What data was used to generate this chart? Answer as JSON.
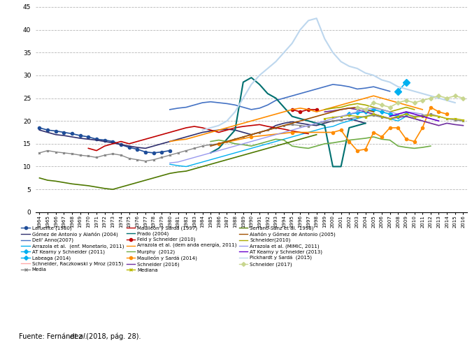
{
  "ylim": [
    0,
    45
  ],
  "yticks": [
    0,
    5,
    10,
    15,
    20,
    25,
    30,
    35,
    40,
    45
  ],
  "series": [
    {
      "label": "Lafuente (1980)",
      "color": "#1F4E99",
      "linewidth": 1.2,
      "marker": "o",
      "markersize": 3,
      "data": {
        "1964": 18.5,
        "1965": 18.0,
        "1966": 17.8,
        "1967": 17.5,
        "1968": 17.2,
        "1969": 16.8,
        "1970": 16.5,
        "1971": 16.0,
        "1972": 15.8,
        "1973": 15.5,
        "1974": 14.8,
        "1975": 14.2,
        "1976": 13.8,
        "1977": 13.2,
        "1978": 13.0,
        "1979": 13.2,
        "1980": 13.5
      }
    },
    {
      "label": "Gómez de Antonio y Alañón (2004)",
      "color": "#2F2F6E",
      "linewidth": 1.2,
      "marker": null,
      "markersize": 0,
      "data": {
        "1964": 18.0,
        "1965": 17.5,
        "1966": 17.0,
        "1967": 16.8,
        "1968": 16.5,
        "1969": 16.2,
        "1970": 16.0,
        "1971": 15.8,
        "1972": 15.5,
        "1973": 15.2,
        "1974": 14.8,
        "1975": 14.5,
        "1976": 14.2,
        "1977": 14.0,
        "1978": 14.5,
        "1979": 15.0,
        "1980": 15.5,
        "1981": 16.0,
        "1982": 16.5,
        "1983": 17.0,
        "1984": 17.5,
        "1985": 17.8,
        "1986": 18.0,
        "1987": 18.2,
        "1988": 18.0,
        "1989": 17.5,
        "1990": 17.0,
        "1991": 17.5,
        "1992": 18.0,
        "1993": 19.0,
        "1994": 19.5,
        "1995": 19.8,
        "1996": 19.5,
        "1997": 19.2,
        "1998": 19.0,
        "1999": 19.5,
        "2000": 20.0,
        "2001": 20.2,
        "2002": 20.5,
        "2003": 20.0,
        "2004": 19.5
      }
    },
    {
      "label": "Dell'Anno(2007)",
      "color": "#4472C4",
      "linewidth": 1.2,
      "marker": null,
      "markersize": 0,
      "data": {
        "1980": 22.5,
        "1981": 22.8,
        "1982": 23.0,
        "1983": 23.5,
        "1984": 24.0,
        "1985": 24.2,
        "1986": 24.0,
        "1987": 23.8,
        "1988": 23.5,
        "1989": 23.0,
        "1990": 22.5,
        "1991": 22.8,
        "1992": 23.5,
        "1993": 24.5,
        "1994": 25.0,
        "1995": 25.5,
        "1996": 26.0,
        "1997": 26.5,
        "1998": 27.0,
        "1999": 27.5,
        "2000": 28.0,
        "2001": 27.8,
        "2002": 27.5,
        "2003": 27.0,
        "2004": 27.2,
        "2005": 27.5,
        "2006": 27.0,
        "2007": 26.5
      }
    },
    {
      "label": "Arrazola et al.  (enf. Monetario, 2011)",
      "color": "#00B0F0",
      "linewidth": 1.0,
      "marker": null,
      "markersize": 0,
      "data": {
        "1980": 10.5,
        "1981": 10.2,
        "1982": 10.0,
        "1983": 10.5,
        "1984": 11.0,
        "1985": 11.5,
        "1986": 12.0,
        "1987": 12.5,
        "1988": 13.0,
        "1989": 13.5,
        "1990": 14.0,
        "1991": 14.5,
        "1992": 15.0,
        "1993": 15.5,
        "1994": 16.0,
        "1995": 16.5,
        "1996": 17.0,
        "1997": 17.5,
        "1998": 18.0,
        "1999": 18.5,
        "2000": 18.8,
        "2001": 19.5,
        "2002": 20.0,
        "2003": 20.5,
        "2004": 21.0,
        "2005": 21.5,
        "2006": 21.0,
        "2007": 20.5,
        "2008": 20.0,
        "2009": 21.0,
        "2010": 20.5,
        "2011": 20.0
      }
    },
    {
      "label": "AT Kearny y Schneider (2011)",
      "color": "#00B0F0",
      "linewidth": 1.2,
      "marker": "D",
      "markersize": 3,
      "data": {
        "2002": 21.5,
        "2003": 21.8,
        "2004": 22.0,
        "2005": 22.5,
        "2006": 22.0,
        "2007": 21.5,
        "2008": 21.0,
        "2009": 21.5
      }
    },
    {
      "label": "Labeaga (2014)",
      "color": "#00B0F0",
      "linewidth": 1.2,
      "marker": "D",
      "markersize": 5,
      "data": {
        "2008": 26.5,
        "2009": 28.5
      }
    },
    {
      "label": "Schneider, Raczkowski y Mroz (2015)",
      "color": "#FFAAAA",
      "linewidth": 1.0,
      "marker": null,
      "markersize": 0,
      "data": {
        "1999": 22.0,
        "2000": 22.2,
        "2001": 22.5,
        "2002": 22.8,
        "2003": 22.5,
        "2004": 22.0,
        "2005": 21.5,
        "2006": 21.0,
        "2007": 20.5,
        "2008": 20.8,
        "2009": 21.0,
        "2010": 20.5,
        "2011": 20.0,
        "2012": 19.5,
        "2013": 19.0
      }
    },
    {
      "label": "Media",
      "color": "#888888",
      "linewidth": 1.0,
      "marker": "x",
      "markersize": 2,
      "data": {
        "1964": 13.0,
        "1965": 13.5,
        "1966": 13.2,
        "1967": 13.0,
        "1968": 12.8,
        "1969": 12.5,
        "1970": 12.3,
        "1971": 12.0,
        "1972": 12.5,
        "1973": 12.8,
        "1974": 12.5,
        "1975": 11.8,
        "1976": 11.5,
        "1977": 11.2,
        "1978": 11.5,
        "1979": 12.0,
        "1980": 12.5,
        "1981": 13.0,
        "1982": 13.5,
        "1983": 14.0,
        "1984": 14.5,
        "1985": 14.8,
        "1986": 15.0,
        "1987": 15.5,
        "1988": 16.0,
        "1989": 16.5,
        "1990": 17.0,
        "1991": 17.5,
        "1992": 18.0,
        "1993": 18.5,
        "1994": 19.0,
        "1995": 19.2,
        "1996": 19.0,
        "1997": 18.8,
        "1998": 19.5,
        "1999": 19.8,
        "2000": 20.0,
        "2001": 20.2,
        "2002": 20.5,
        "2003": 20.8,
        "2004": 21.0,
        "2005": 21.2,
        "2006": 20.8,
        "2007": 20.5,
        "2008": 21.0,
        "2009": 21.5,
        "2010": 21.0,
        "2011": 21.2,
        "2012": 21.5,
        "2013": 21.0,
        "2014": 20.5,
        "2015": 20.2,
        "2016": 20.0
      }
    },
    {
      "label": "Maulleón y Sardá (1997)",
      "color": "#C00000",
      "linewidth": 1.2,
      "marker": null,
      "markersize": 0,
      "data": {
        "1970": 14.0,
        "1971": 13.5,
        "1972": 14.5,
        "1973": 15.0,
        "1974": 15.5,
        "1975": 15.0,
        "1976": 15.5,
        "1977": 16.0,
        "1978": 16.5,
        "1979": 17.0,
        "1980": 17.5,
        "1981": 18.0,
        "1982": 18.5,
        "1983": 18.8,
        "1984": 18.5,
        "1985": 18.0,
        "1986": 17.5,
        "1987": 18.0,
        "1988": 18.5,
        "1989": 18.8,
        "1990": 19.0,
        "1991": 19.2,
        "1992": 18.8,
        "1993": 18.5,
        "1994": 18.2,
        "1995": 17.8,
        "1996": 17.5,
        "1997": 17.2
      }
    },
    {
      "label": "Prado (2004)",
      "color": "#007070",
      "linewidth": 1.5,
      "marker": null,
      "markersize": 0,
      "data": {
        "1985": 13.0,
        "1986": 14.0,
        "1987": 16.0,
        "1988": 18.0,
        "1989": 28.5,
        "1990": 29.5,
        "1991": 28.0,
        "1992": 26.0,
        "1993": 25.0,
        "1994": 23.0,
        "1995": 21.0,
        "1996": 20.5,
        "1997": 20.0,
        "1998": 19.5,
        "1999": 19.0,
        "2000": 10.0,
        "2001": 10.0,
        "2002": 18.5,
        "2003": 19.0,
        "2004": 19.5
      }
    },
    {
      "label": "Feld y Schneider (2010)",
      "color": "#C00000",
      "linewidth": 1.2,
      "marker": "o",
      "markersize": 3,
      "data": {
        "1995": 22.5,
        "1996": 22.0,
        "1997": 22.5,
        "1998": 22.5
      }
    },
    {
      "label": "Arrazola et al. (demanda energía, 2011)",
      "color": "#FF8C00",
      "linewidth": 1.2,
      "marker": null,
      "markersize": 0,
      "data": {
        "1980": 15.5,
        "1981": 15.8,
        "1982": 16.0,
        "1983": 16.5,
        "1984": 17.0,
        "1985": 17.5,
        "1986": 18.0,
        "1987": 18.5,
        "1988": 19.0,
        "1989": 19.5,
        "1990": 20.0,
        "1991": 20.5,
        "1992": 21.0,
        "1993": 21.5,
        "1994": 22.0,
        "1995": 22.5,
        "1996": 22.8,
        "1997": 22.5,
        "1998": 22.0,
        "1999": 22.5,
        "2000": 23.0,
        "2001": 23.5,
        "2002": 24.0,
        "2003": 24.5,
        "2004": 25.0,
        "2005": 25.5,
        "2006": 25.0,
        "2007": 24.5,
        "2008": 24.0,
        "2009": 23.5,
        "2010": 23.0,
        "2011": 22.5
      }
    },
    {
      "label": "Murphy  (2012)",
      "color": "#70AD47",
      "linewidth": 1.2,
      "marker": null,
      "markersize": 0,
      "data": {
        "1985": 15.5,
        "1986": 15.8,
        "1987": 15.5,
        "1988": 15.0,
        "1989": 14.8,
        "1990": 14.5,
        "1991": 15.0,
        "1992": 15.5,
        "1993": 16.0,
        "1994": 15.8,
        "1995": 14.5,
        "1996": 14.2,
        "1997": 14.0,
        "1998": 14.5,
        "1999": 15.0,
        "2000": 15.2,
        "2001": 15.5,
        "2002": 15.8,
        "2003": 16.0,
        "2004": 16.2,
        "2005": 16.5,
        "2006": 16.0,
        "2007": 15.8,
        "2008": 14.5,
        "2009": 14.2,
        "2010": 14.0,
        "2011": 14.2,
        "2012": 14.5
      }
    },
    {
      "label": "Maulleón y Sardá  (2014)",
      "color": "#FF8C00",
      "linewidth": 1.2,
      "marker": "o",
      "markersize": 3,
      "data": {
        "1986": 15.0,
        "1990": 16.5,
        "1995": 17.5,
        "2000": 17.5,
        "2001": 18.0,
        "2002": 15.5,
        "2003": 13.5,
        "2004": 13.8,
        "2005": 17.5,
        "2006": 16.5,
        "2007": 18.5,
        "2008": 18.5,
        "2009": 16.0,
        "2010": 15.5,
        "2011": 18.5,
        "2012": 23.0,
        "2013": 22.0,
        "2014": 21.5
      }
    },
    {
      "label": "Schneider (2016)",
      "color": "#7030A0",
      "linewidth": 1.2,
      "marker": null,
      "markersize": 0,
      "data": {
        "1999": 22.0,
        "2000": 22.2,
        "2001": 22.5,
        "2002": 22.8,
        "2003": 22.5,
        "2004": 22.0,
        "2005": 21.5,
        "2006": 21.0,
        "2007": 20.5,
        "2008": 20.8,
        "2009": 21.0,
        "2010": 20.5,
        "2011": 20.0,
        "2012": 19.5,
        "2013": 19.0,
        "2014": 19.5,
        "2015": 19.2,
        "2016": 19.0
      }
    },
    {
      "label": "Mediana",
      "color": "#B8B800",
      "linewidth": 1.0,
      "marker": "x",
      "markersize": 2,
      "data": {
        "1999": 20.5,
        "2000": 20.8,
        "2001": 21.0,
        "2002": 21.2,
        "2003": 21.0,
        "2004": 20.8,
        "2005": 21.5,
        "2006": 21.0,
        "2007": 20.5,
        "2008": 21.0,
        "2009": 21.5,
        "2010": 20.8,
        "2011": 21.0,
        "2012": 21.2,
        "2013": 21.0,
        "2014": 20.5,
        "2015": 20.5,
        "2016": 20.2
      }
    },
    {
      "label": "Serrano-Sanz et al. '1998)",
      "color": "#4E7800",
      "linewidth": 1.2,
      "marker": null,
      "markersize": 0,
      "data": {
        "1964": 7.5,
        "1965": 7.0,
        "1966": 6.8,
        "1967": 6.5,
        "1968": 6.2,
        "1969": 6.0,
        "1970": 5.8,
        "1971": 5.5,
        "1972": 5.2,
        "1973": 5.0,
        "1974": 5.5,
        "1975": 6.0,
        "1976": 6.5,
        "1977": 7.0,
        "1978": 7.5,
        "1979": 8.0,
        "1980": 8.5,
        "1981": 8.8,
        "1982": 9.0,
        "1983": 9.5,
        "1984": 10.0,
        "1985": 10.5,
        "1986": 11.0,
        "1987": 11.5,
        "1988": 12.0,
        "1989": 12.5,
        "1990": 13.0,
        "1991": 13.5,
        "1992": 14.0,
        "1993": 14.5,
        "1994": 15.0,
        "1995": 15.5,
        "1996": 16.0,
        "1997": 16.5,
        "1998": 17.0
      }
    },
    {
      "label": "Alañón y Gómez de Antonio (2005)",
      "color": "#A05000",
      "linewidth": 1.2,
      "marker": null,
      "markersize": 0,
      "data": {
        "1985": 14.5,
        "1986": 15.0,
        "1987": 15.5,
        "1988": 16.0,
        "1989": 16.5,
        "1990": 17.0,
        "1991": 17.5,
        "1992": 18.0,
        "1993": 18.5,
        "1994": 19.0,
        "1995": 19.5,
        "1996": 20.0,
        "1997": 20.5,
        "1998": 21.0,
        "1999": 21.5,
        "2000": 22.0,
        "2001": 22.5,
        "2002": 22.8,
        "2003": 23.0,
        "2004": 22.5,
        "2005": 22.0
      }
    },
    {
      "label": "Schneider(2010)",
      "color": "#AAAA00",
      "linewidth": 1.2,
      "marker": null,
      "markersize": 0,
      "data": {
        "1999": 22.5,
        "2000": 22.8,
        "2001": 23.0,
        "2002": 23.5,
        "2003": 23.8,
        "2004": 23.5,
        "2005": 23.0,
        "2006": 22.5,
        "2007": 22.0,
        "2008": 22.5,
        "2009": 23.0,
        "2010": 22.5
      }
    },
    {
      "label": "Arrazola et al. (MIMIC, 2011)",
      "color": "#9999EE",
      "linewidth": 1.0,
      "marker": null,
      "markersize": 0,
      "data": {
        "1980": 10.8,
        "1981": 11.0,
        "1982": 11.5,
        "1983": 12.0,
        "1984": 12.5,
        "1985": 13.0,
        "1986": 13.5,
        "1987": 14.0,
        "1988": 14.5,
        "1989": 15.0,
        "1990": 15.5,
        "1991": 16.0,
        "1992": 16.5,
        "1993": 17.0,
        "1994": 17.5,
        "1995": 18.0,
        "1996": 18.5,
        "1997": 19.0,
        "1998": 19.5,
        "1999": 20.0,
        "2000": 20.5,
        "2001": 21.0,
        "2002": 21.5,
        "2003": 22.0,
        "2004": 22.5,
        "2005": 22.8,
        "2006": 22.5,
        "2007": 22.0,
        "2008": 21.5,
        "2009": 22.0,
        "2010": 21.8,
        "2011": 21.5
      }
    },
    {
      "label": "AT Kearny y Schneider (2013)",
      "color": "#6600CC",
      "linewidth": 1.2,
      "marker": null,
      "markersize": 0,
      "data": {
        "2007": 21.0,
        "2008": 21.5,
        "2009": 22.0,
        "2010": 21.5,
        "2011": 21.0,
        "2012": 20.5,
        "2013": 20.0
      }
    },
    {
      "label": "Pickhardt y Sardá  (2015)",
      "color": "#BDD7EE",
      "linewidth": 1.5,
      "marker": null,
      "markersize": 0,
      "data": {
        "1984": 18.0,
        "1985": 18.5,
        "1986": 19.0,
        "1987": 20.0,
        "1988": 22.0,
        "1989": 25.0,
        "1990": 28.0,
        "1991": 30.0,
        "1992": 31.5,
        "1993": 33.0,
        "1994": 35.0,
        "1995": 37.0,
        "1996": 40.0,
        "1997": 42.0,
        "1998": 42.5,
        "1999": 38.0,
        "2000": 35.0,
        "2001": 33.0,
        "2002": 32.0,
        "2003": 31.5,
        "2004": 30.5,
        "2005": 30.0,
        "2006": 29.0,
        "2007": 28.5,
        "2008": 27.5,
        "2009": 27.0,
        "2010": 26.5,
        "2011": 26.0,
        "2012": 25.5,
        "2013": 25.0,
        "2014": 24.5,
        "2015": 24.0
      }
    },
    {
      "label": "Schneider (2017)",
      "color": "#C8D68F",
      "linewidth": 1.2,
      "marker": "D",
      "markersize": 3,
      "data": {
        "2003": 23.0,
        "2004": 22.5,
        "2005": 24.0,
        "2006": 23.5,
        "2007": 23.0,
        "2008": 24.0,
        "2009": 24.5,
        "2010": 24.0,
        "2011": 24.5,
        "2012": 25.0,
        "2013": 25.5,
        "2014": 25.0,
        "2015": 25.5,
        "2016": 25.0
      }
    }
  ],
  "legend_entries": [
    [
      "Lafuente (1980)",
      "#1F4E99",
      "o",
      1
    ],
    [
      "Gómez de Antonio y Alañón (2004)",
      "#2F2F6E",
      null,
      1
    ],
    [
      "Dell' Anno(2007)",
      "#4472C4",
      null,
      1
    ],
    [
      "Arrazola et al.  (enf. Monetario, 2011)",
      "#00B0F0",
      null,
      1
    ],
    [
      "AT Kearny y Schneider (2011)",
      "#00B0F0",
      "D",
      1
    ],
    [
      "Labeaga (2014)",
      "#00B0F0",
      "D",
      1
    ],
    [
      "Schneider, Raczkowski y Mroz (2015)",
      "#FFAAAA",
      null,
      1
    ],
    [
      "Media",
      "#888888",
      "x",
      1
    ],
    [
      "Maulleón y Sardá (1997)",
      "#C00000",
      null,
      1
    ],
    [
      "Prado (2004)",
      "#007070",
      null,
      1
    ],
    [
      "Feld y Schneider (2010)",
      "#C00000",
      "o",
      1
    ],
    [
      "Arrazola et al. (dem anda energía, 2011)",
      "#FF8C00",
      null,
      1
    ],
    [
      "Murphy  (2012)",
      "#70AD47",
      null,
      1
    ],
    [
      "Maulleón y Sardá (2014)",
      "#FF8C00",
      "o",
      1
    ],
    [
      "Schneider (2016)",
      "#7030A0",
      null,
      1
    ],
    [
      "Mediana",
      "#B8B800",
      "x",
      1
    ],
    [
      "Serrano-Sanz et al. '1998)",
      "#4E7800",
      null,
      1
    ],
    [
      "Alañón y Gómez de Antonio (2005)",
      "#A05000",
      null,
      1
    ],
    [
      "Schneider(2010)",
      "#AAAA00",
      null,
      1
    ],
    [
      "Arrazola et al. (MIMIC, 2011)",
      "#9999EE",
      null,
      1
    ],
    [
      "AT Kearny y Schneider (2013)",
      "#6600CC",
      null,
      1
    ],
    [
      "Pickhardt y Sardá  (2015)",
      "#BDD7EE",
      null,
      1
    ],
    [
      "Schneider (2017)",
      "#C8D68F",
      "D",
      1
    ]
  ]
}
